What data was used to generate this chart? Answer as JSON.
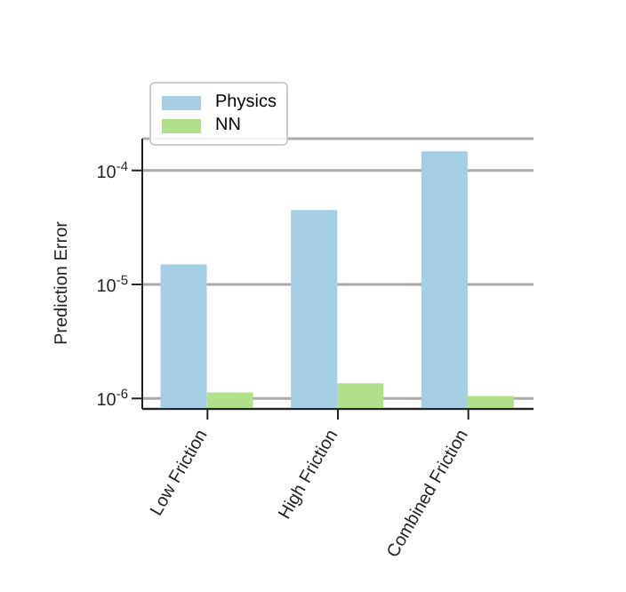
{
  "chart_data": {
    "type": "bar",
    "categories": [
      "Low Friction",
      "High Friction",
      "Combined Friction"
    ],
    "ylabel": "Prediction Error",
    "log": true,
    "ylim": [
      8.1e-07,
      0.00019
    ],
    "yticks": [
      {
        "value": 1e-06,
        "label": "10$^{-6}$"
      },
      {
        "value": 1e-05,
        "label": "10$^{-5}$"
      },
      {
        "value": 0.0001,
        "label": "10$^{-4}$"
      }
    ],
    "grid": "y",
    "legend": "top left",
    "series": [
      {
        "name": "Physics",
        "color": "#a6cee3",
        "values": [
          1.5e-05,
          4.5e-05,
          0.000147
        ]
      },
      {
        "name": "NN",
        "color": "#b2df8a",
        "values": [
          1.13e-06,
          1.36e-06,
          1.05e-06
        ]
      }
    ]
  }
}
